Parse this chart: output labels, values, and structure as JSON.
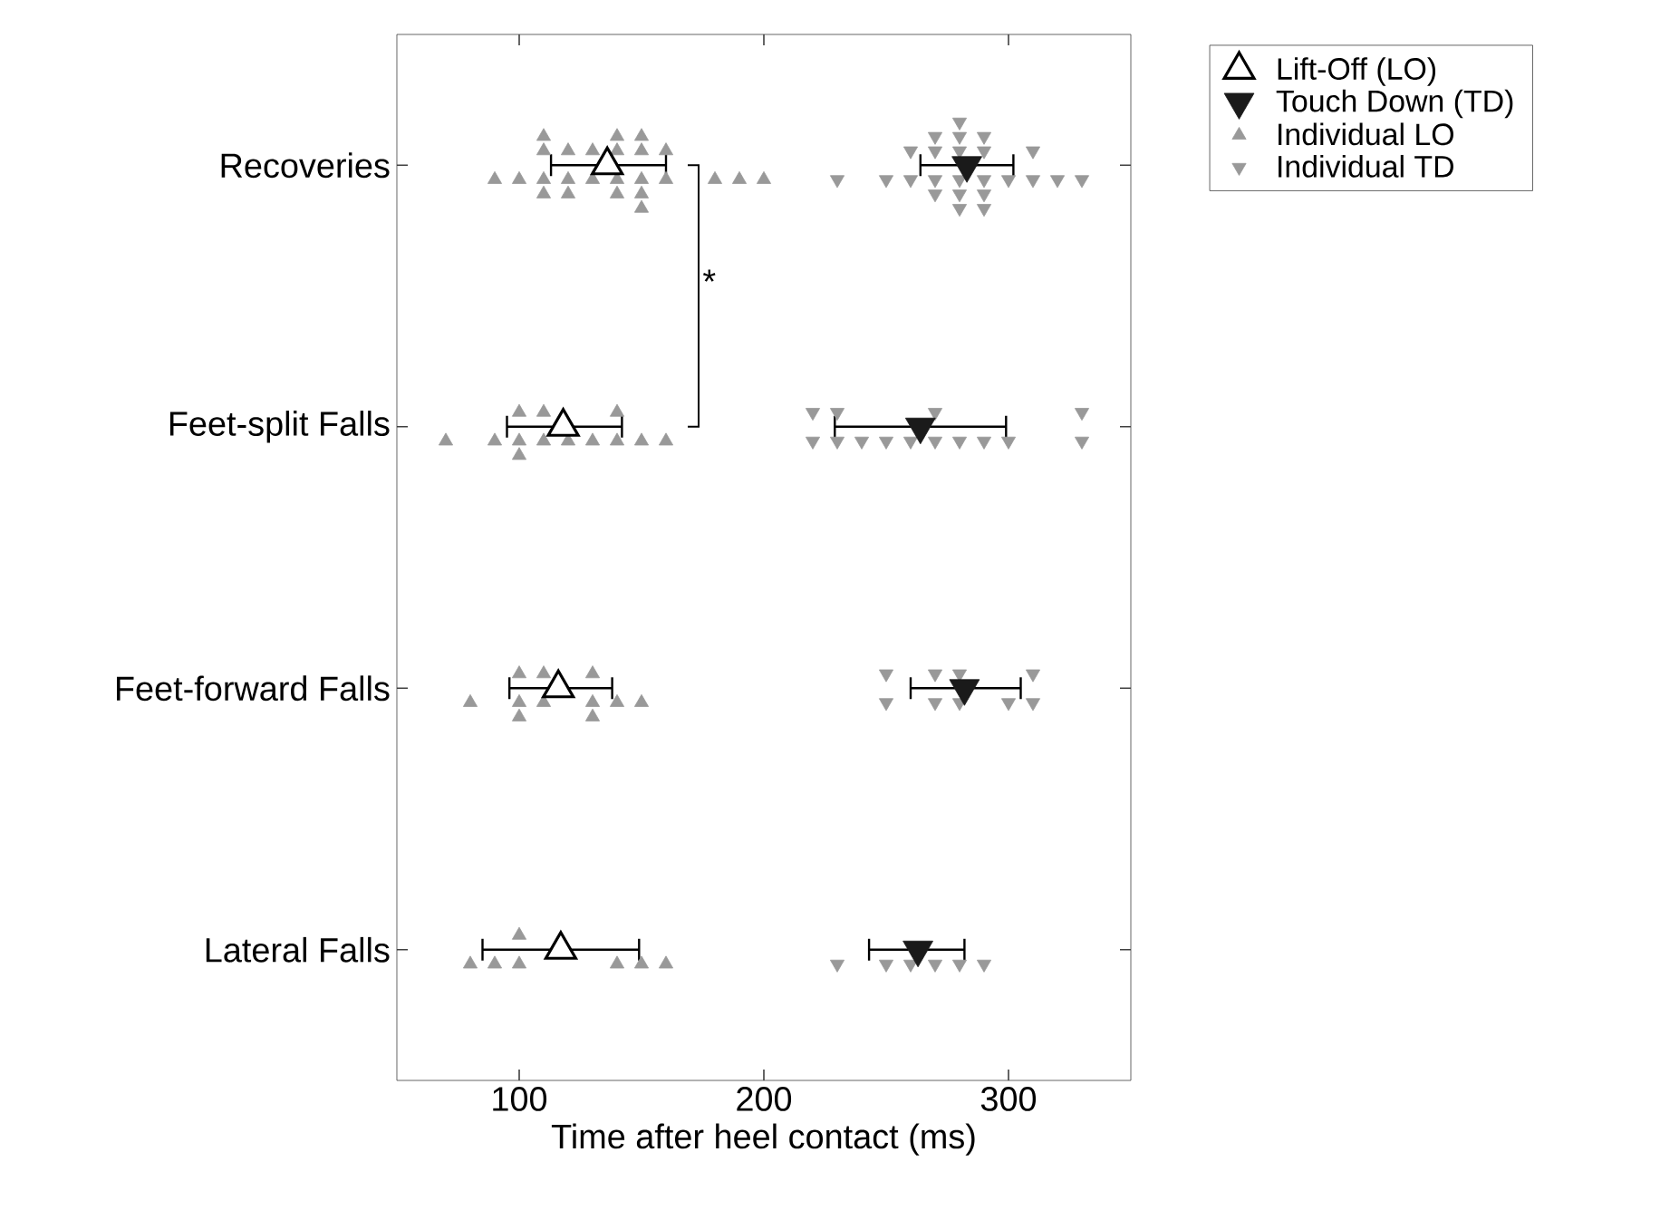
{
  "chart_data": {
    "type": "scatter",
    "orientation": "horizontal",
    "categories": [
      "Recoveries",
      "Feet-split Falls",
      "Feet-forward Falls",
      "Lateral Falls"
    ],
    "xlabel": "Time after heel contact (ms)",
    "xlim": [
      50,
      350
    ],
    "xticks": [
      100,
      200,
      300
    ],
    "legend": "top right",
    "annotations": [
      "*"
    ],
    "series": [
      {
        "name": "Lift-Off (LO)",
        "color": "#000000",
        "marker": "triangle-open",
        "x": [
          "Recoveries",
          "Feet-split Falls",
          "Feet-forward Falls",
          "Lateral Falls"
        ],
        "values": [
          136,
          118,
          116,
          117
        ],
        "errors": [
          [
            113,
            160
          ],
          [
            95,
            142
          ],
          [
            96,
            138
          ],
          [
            85,
            149
          ]
        ]
      },
      {
        "name": "Touch Down (TD)",
        "color": "#1a1a1a",
        "marker": "triangle-down",
        "x": [
          "Recoveries",
          "Feet-split Falls",
          "Feet-forward Falls",
          "Lateral Falls"
        ],
        "values": [
          283,
          264,
          282,
          263
        ],
        "errors": [
          [
            264,
            302
          ],
          [
            229,
            299
          ],
          [
            260,
            305
          ],
          [
            243,
            282
          ]
        ]
      },
      {
        "name": "Individual LO",
        "color": "#999999",
        "marker": "triangle",
        "x": [
          "Recoveries",
          "Recoveries",
          "Recoveries",
          "Recoveries",
          "Recoveries",
          "Recoveries",
          "Recoveries",
          "Recoveries",
          "Recoveries",
          "Recoveries",
          "Recoveries",
          "Recoveries",
          "Recoveries",
          "Recoveries",
          "Recoveries",
          "Recoveries",
          "Recoveries",
          "Recoveries",
          "Recoveries",
          "Recoveries",
          "Recoveries",
          "Recoveries",
          "Recoveries",
          "Recoveries",
          "Recoveries",
          "Feet-split Falls",
          "Feet-split Falls",
          "Feet-split Falls",
          "Feet-split Falls",
          "Feet-split Falls",
          "Feet-split Falls",
          "Feet-split Falls",
          "Feet-split Falls",
          "Feet-split Falls",
          "Feet-split Falls",
          "Feet-split Falls",
          "Feet-split Falls",
          "Feet-split Falls",
          "Feet-forward Falls",
          "Feet-forward Falls",
          "Feet-forward Falls",
          "Feet-forward Falls",
          "Feet-forward Falls",
          "Feet-forward Falls",
          "Feet-forward Falls",
          "Feet-forward Falls",
          "Feet-forward Falls",
          "Feet-forward Falls",
          "Feet-forward Falls",
          "Lateral Falls",
          "Lateral Falls",
          "Lateral Falls",
          "Lateral Falls",
          "Lateral Falls",
          "Lateral Falls",
          "Lateral Falls"
        ],
        "values": [
          90,
          100,
          110,
          110,
          110,
          110,
          120,
          120,
          120,
          130,
          130,
          140,
          140,
          140,
          140,
          150,
          150,
          150,
          150,
          150,
          160,
          160,
          180,
          190,
          200,
          70,
          90,
          100,
          100,
          100,
          110,
          110,
          120,
          130,
          140,
          140,
          150,
          160,
          80,
          100,
          100,
          100,
          110,
          110,
          130,
          130,
          130,
          140,
          150,
          80,
          90,
          100,
          100,
          140,
          150,
          160
        ]
      },
      {
        "name": "Individual TD",
        "color": "#999999",
        "marker": "triangle-down",
        "x": [
          "Recoveries",
          "Recoveries",
          "Recoveries",
          "Recoveries",
          "Recoveries",
          "Recoveries",
          "Recoveries",
          "Recoveries",
          "Recoveries",
          "Recoveries",
          "Recoveries",
          "Recoveries",
          "Recoveries",
          "Recoveries",
          "Recoveries",
          "Recoveries",
          "Recoveries",
          "Recoveries",
          "Recoveries",
          "Recoveries",
          "Recoveries",
          "Recoveries",
          "Recoveries",
          "Recoveries",
          "Feet-split Falls",
          "Feet-split Falls",
          "Feet-split Falls",
          "Feet-split Falls",
          "Feet-split Falls",
          "Feet-split Falls",
          "Feet-split Falls",
          "Feet-split Falls",
          "Feet-split Falls",
          "Feet-split Falls",
          "Feet-split Falls",
          "Feet-split Falls",
          "Feet-split Falls",
          "Feet-split Falls",
          "Feet-forward Falls",
          "Feet-forward Falls",
          "Feet-forward Falls",
          "Feet-forward Falls",
          "Feet-forward Falls",
          "Feet-forward Falls",
          "Feet-forward Falls",
          "Feet-forward Falls",
          "Feet-forward Falls",
          "Lateral Falls",
          "Lateral Falls",
          "Lateral Falls",
          "Lateral Falls",
          "Lateral Falls",
          "Lateral Falls"
        ],
        "values": [
          230,
          250,
          260,
          260,
          270,
          270,
          270,
          270,
          280,
          280,
          280,
          280,
          280,
          280,
          290,
          290,
          290,
          290,
          290,
          300,
          310,
          310,
          320,
          330,
          220,
          220,
          230,
          230,
          240,
          250,
          260,
          270,
          270,
          280,
          290,
          300,
          330,
          330,
          250,
          250,
          270,
          270,
          280,
          280,
          300,
          310,
          310,
          230,
          250,
          260,
          270,
          280,
          290
        ]
      }
    ]
  }
}
